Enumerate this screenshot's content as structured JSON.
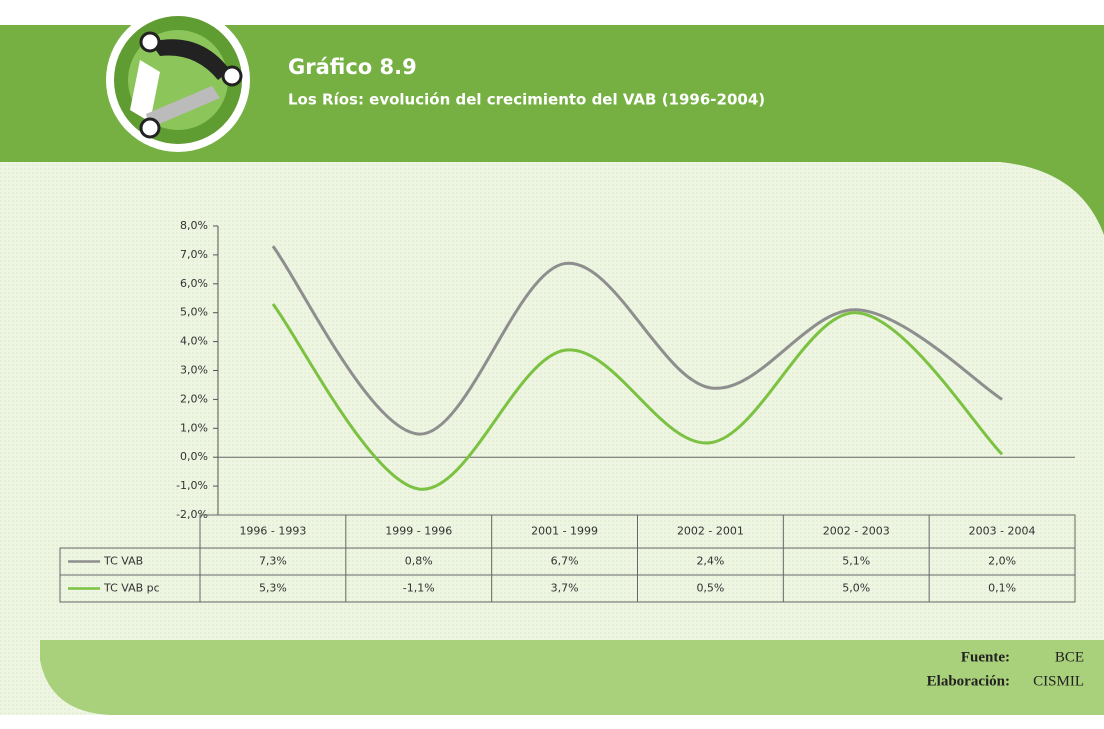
{
  "chart_data": {
    "type": "line",
    "title": "Gráfico 8.9",
    "subtitle": "Los Ríos: evolución del crecimiento del VAB (1996-2004)",
    "categories": [
      "1996 - 1993",
      "1999 - 1996",
      "2001 - 1999",
      "2002 - 2001",
      "2002 - 2003",
      "2003 - 2004"
    ],
    "series": [
      {
        "name": "TC VAB",
        "color": "#8e8e8e",
        "values": [
          7.3,
          0.8,
          6.7,
          2.4,
          5.1,
          2.0
        ],
        "value_labels": [
          "7,3%",
          "0,8%",
          "6,7%",
          "2,4%",
          "5,1%",
          "2,0%"
        ]
      },
      {
        "name": "TC VAB pc",
        "color": "#7cc242",
        "values": [
          5.3,
          -1.1,
          3.7,
          0.5,
          5.0,
          0.1
        ],
        "value_labels": [
          "5,3%",
          "-1,1%",
          "3,7%",
          "0,5%",
          "5,0%",
          "0,1%"
        ]
      }
    ],
    "ylim": [
      -2,
      8
    ],
    "yticks": [
      {
        "value": -2,
        "label": "-2,0%"
      },
      {
        "value": -1,
        "label": "-1,0%"
      },
      {
        "value": 0,
        "label": "0,0%"
      },
      {
        "value": 1,
        "label": "1,0%"
      },
      {
        "value": 2,
        "label": "2,0%"
      },
      {
        "value": 3,
        "label": "3,0%"
      },
      {
        "value": 4,
        "label": "4,0%"
      },
      {
        "value": 5,
        "label": "5,0%"
      },
      {
        "value": 6,
        "label": "6,0%"
      },
      {
        "value": 7,
        "label": "7,0%"
      },
      {
        "value": 8,
        "label": "8,0%"
      }
    ],
    "zero_line": true,
    "source_label": "Fuente:",
    "source": "BCE",
    "credit_label": "Elaboración:",
    "credit": "CISMIL"
  }
}
